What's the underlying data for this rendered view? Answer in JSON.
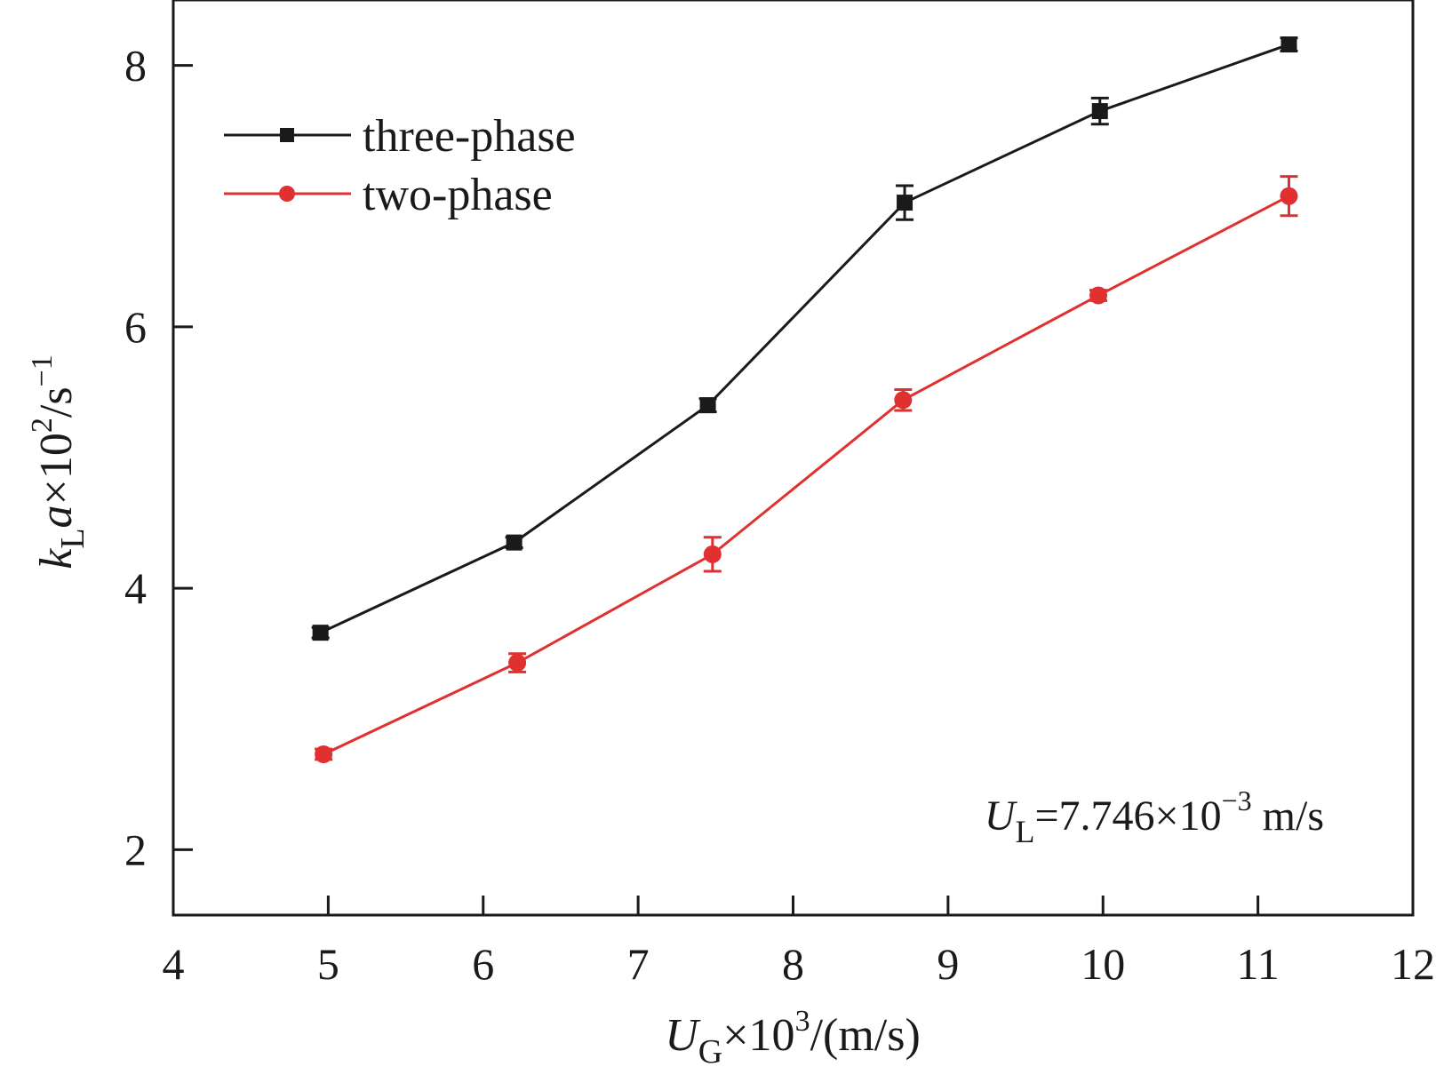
{
  "chart_data": {
    "type": "line",
    "x_axis": {
      "range": [
        4,
        12
      ],
      "ticks": [
        4,
        5,
        6,
        7,
        8,
        9,
        10,
        11,
        12
      ],
      "tick_labels": [
        "4",
        "5",
        "6",
        "7",
        "8",
        "9",
        "10",
        "11",
        "12"
      ],
      "title": {
        "main": "U",
        "sub": "G",
        "rest": "×10",
        "sup": "3",
        "tail": "/(m/s)"
      }
    },
    "y_axis": {
      "range": [
        1.5,
        8.5
      ],
      "ticks": [
        2,
        4,
        6,
        8
      ],
      "tick_labels": [
        "2",
        "4",
        "6",
        "8"
      ],
      "title": {
        "main": "k",
        "sub": "L",
        "var": "a",
        "rest": "×10",
        "sup": "2",
        "tail": "/s",
        "sup2": "−1"
      }
    },
    "grid": false,
    "legend": {
      "position": "top-left"
    },
    "series": [
      {
        "name": "three-phase",
        "color": "#1a1a1a",
        "marker": "square",
        "x": [
          4.95,
          6.2,
          7.45,
          8.72,
          9.98,
          11.2
        ],
        "y": [
          3.66,
          4.35,
          5.4,
          6.95,
          7.65,
          8.16
        ],
        "err": [
          0.04,
          0.04,
          0.05,
          0.13,
          0.1,
          0.05
        ]
      },
      {
        "name": "two-phase",
        "color": "#e03030",
        "marker": "circle",
        "x": [
          4.97,
          6.22,
          7.48,
          8.71,
          9.97,
          11.2
        ],
        "y": [
          2.73,
          3.43,
          4.26,
          5.44,
          6.24,
          7.0
        ],
        "err": [
          0.04,
          0.07,
          0.13,
          0.08,
          0.04,
          0.15
        ]
      }
    ],
    "annotation": {
      "main": "U",
      "sub": "L",
      "rest": "=7.746×10",
      "sup": "−3",
      "tail": " m/s",
      "position": "bottom-right"
    }
  }
}
